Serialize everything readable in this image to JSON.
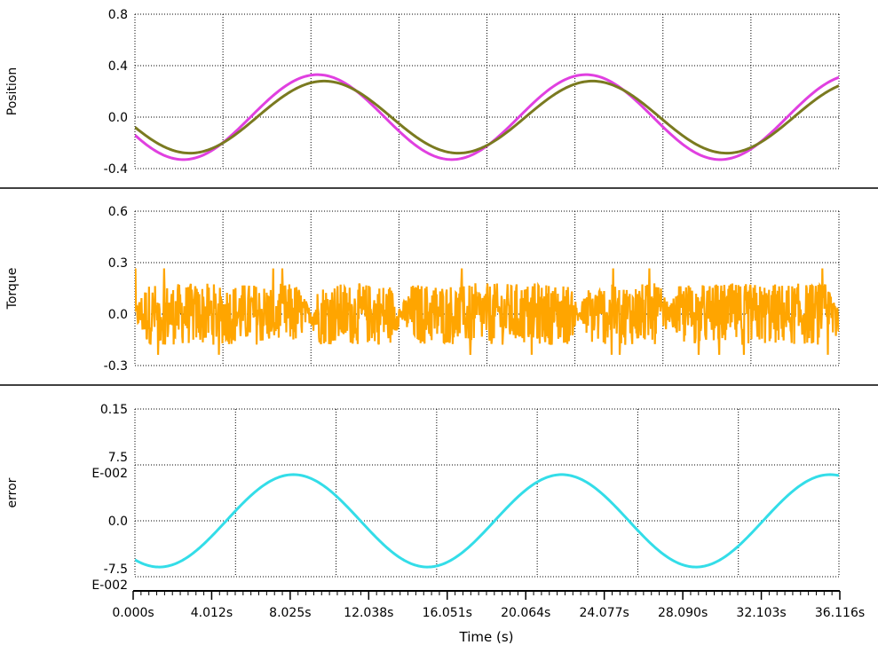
{
  "chart_data": [
    {
      "type": "line",
      "ylabel": "Position",
      "ylim": [
        -0.4,
        0.8
      ],
      "xlim": [
        0,
        32
      ],
      "yticks": [
        "0.8",
        "0.4",
        "0.0",
        "-0.4"
      ],
      "ytick_values": [
        0.8,
        0.4,
        0.0,
        -0.4
      ],
      "grid": true,
      "colors": {
        "reference": "#e040e0",
        "actual": "#7a7a20"
      },
      "series": [
        {
          "key": "reference",
          "amplitude": 0.33,
          "period": 12.2,
          "t_peak": 8.3,
          "x": [
            0,
            2,
            4,
            6,
            8.3,
            10,
            12,
            14.4,
            16,
            18,
            20.5,
            22,
            24,
            26.6,
            28,
            30,
            32.7,
            33.5
          ],
          "y": [
            -0.14,
            -0.33,
            -0.2,
            0.12,
            0.33,
            0.21,
            -0.13,
            -0.33,
            -0.2,
            0.13,
            0.33,
            0.22,
            -0.11,
            -0.33,
            -0.24,
            0.09,
            0.33,
            0.04
          ]
        },
        {
          "key": "actual",
          "amplitude": 0.28,
          "period": 12.2,
          "t_peak": 8.6,
          "x": [
            0,
            2,
            4,
            6,
            8.6,
            10,
            12,
            14.7,
            16,
            18,
            20.8,
            22,
            24,
            26.9,
            28,
            30,
            33.0,
            33.5
          ],
          "y": [
            -0.15,
            -0.28,
            -0.19,
            0.07,
            0.28,
            0.21,
            -0.07,
            -0.28,
            -0.21,
            0.08,
            0.28,
            0.22,
            -0.06,
            -0.28,
            -0.23,
            0.04,
            0.28,
            0.05
          ]
        }
      ]
    },
    {
      "type": "line",
      "ylabel": "Torque",
      "ylim": [
        -0.3,
        0.6
      ],
      "xlim": [
        0,
        32
      ],
      "yticks": [
        "0.6",
        "0.3",
        "0.0",
        "-0.3"
      ],
      "ytick_values": [
        0.6,
        0.3,
        0.0,
        -0.3
      ],
      "grid": true,
      "colors": {
        "torque": "#ffa500"
      },
      "series": [
        {
          "key": "torque",
          "style": "noise",
          "typical_range": [
            -0.18,
            0.18
          ],
          "extreme_range": [
            -0.25,
            0.28
          ],
          "quiet_points_x": [
            0,
            7.9,
            12.1,
            20.2,
            24.3,
            32.4
          ]
        }
      ]
    },
    {
      "type": "line",
      "ylabel": "error",
      "ylim": [
        -0.075,
        0.15
      ],
      "xlim": [
        0,
        32
      ],
      "yticks": [
        [
          "0.15"
        ],
        [
          "7.5",
          "E-002"
        ],
        [
          "0.0"
        ],
        [
          "-7.5",
          "E-002"
        ]
      ],
      "ytick_values": [
        0.15,
        0.075,
        0.0,
        -0.075
      ],
      "grid": true,
      "colors": {
        "error": "#33dde8"
      },
      "series": [
        {
          "key": "error",
          "amplitude": 0.062,
          "period": 12.2,
          "t_peak": 7.2,
          "x": [
            0,
            0.9,
            3.6,
            7.2,
            10.6,
            13.1,
            16.5,
            19.5,
            22.5,
            25.3,
            28.8,
            31.8,
            33.5
          ],
          "y": [
            -0.06,
            -0.062,
            0.0,
            0.062,
            0.0,
            -0.062,
            0.0,
            0.062,
            0.0,
            -0.062,
            0.0,
            0.062,
            -0.028
          ]
        }
      ]
    }
  ],
  "x_axis": {
    "label": "Time (s)",
    "tick_values": [
      0.0,
      4.012,
      8.025,
      12.038,
      16.051,
      20.064,
      24.077,
      28.09,
      32.103,
      36.116
    ],
    "tick_labels": [
      "0.000s",
      "4.012s",
      "8.025s",
      "12.038s",
      "16.051s",
      "20.064s",
      "24.077s",
      "28.090s",
      "32.103s",
      "36.116s"
    ]
  }
}
